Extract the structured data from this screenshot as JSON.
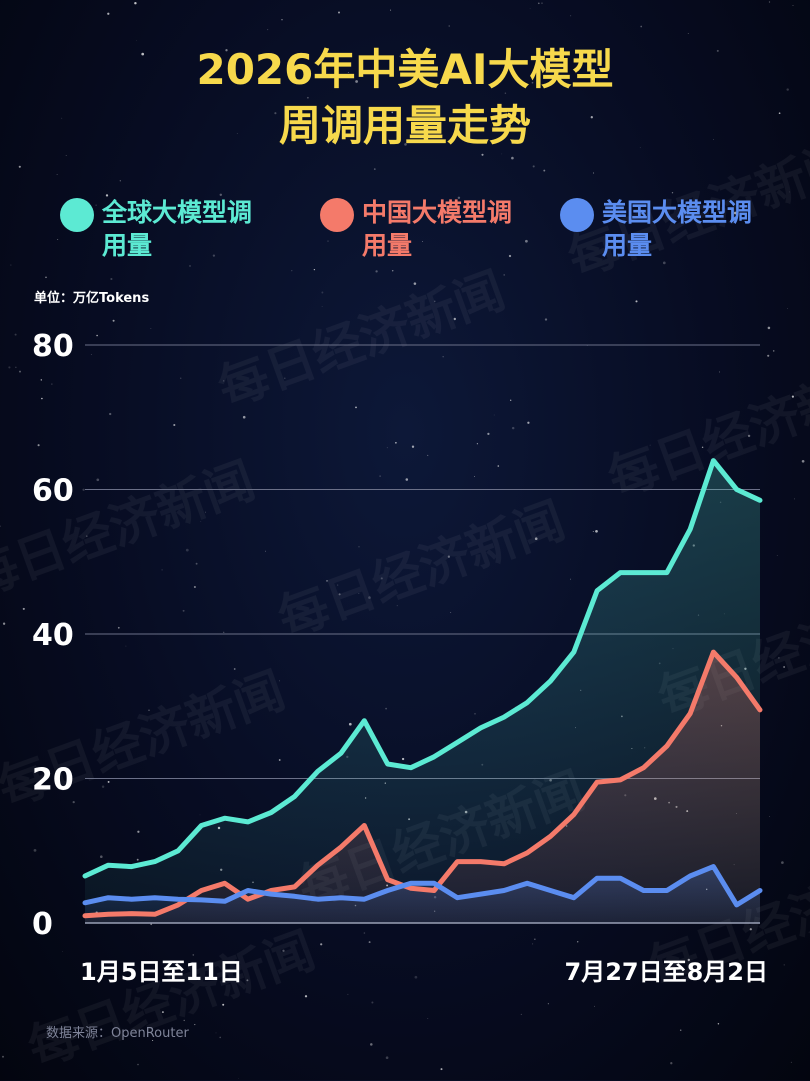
{
  "title_line1": "2026年中美AI大模型",
  "title_line2": "周调用量走势",
  "unit": "单位：万亿Tokens",
  "source": "数据来源：OpenRouter",
  "watermark": "每日经济新闻",
  "legend": [
    {
      "label": "全球大模型调用量",
      "color": "#5cead3"
    },
    {
      "label": "中国大模型调用量",
      "color": "#f47a6a"
    },
    {
      "label": "美国大模型调用量",
      "color": "#5b8df0"
    }
  ],
  "chart_data": {
    "type": "line",
    "x_first_label": "1月5日至11日",
    "x_last_label": "7月27日至8月2日",
    "ylim": [
      0,
      80
    ],
    "yticks": [
      0,
      20,
      40,
      60,
      80
    ],
    "grid": true,
    "series": [
      {
        "name": "全球大模型调用量",
        "color": "#5cead3",
        "values": [
          6.5,
          8.0,
          7.8,
          8.5,
          10.0,
          13.5,
          14.5,
          14.0,
          15.3,
          17.5,
          21.0,
          23.5,
          28.0,
          22.0,
          21.5,
          23.0,
          25.0,
          27.0,
          28.5,
          30.5,
          33.5,
          37.5,
          46.0,
          48.5,
          48.5,
          48.5,
          54.5,
          64.0,
          60.0,
          58.5
        ]
      },
      {
        "name": "中国大模型调用量",
        "color": "#f47a6a",
        "values": [
          1.0,
          1.2,
          1.3,
          1.2,
          2.5,
          4.5,
          5.5,
          3.3,
          4.5,
          5.0,
          8.0,
          10.5,
          13.5,
          6.0,
          4.8,
          4.5,
          8.5,
          8.5,
          8.2,
          9.7,
          12.0,
          15.0,
          19.5,
          19.8,
          21.5,
          24.5,
          29.0,
          37.5,
          34.0,
          29.5
        ]
      },
      {
        "name": "美国大模型调用量",
        "color": "#5b8df0",
        "values": [
          2.8,
          3.5,
          3.3,
          3.5,
          3.3,
          3.2,
          3.0,
          4.5,
          4.0,
          3.7,
          3.3,
          3.5,
          3.3,
          4.5,
          5.5,
          5.5,
          3.5,
          4.0,
          4.5,
          5.5,
          4.5,
          3.5,
          6.2,
          6.2,
          4.5,
          4.5,
          6.5,
          7.8,
          2.5,
          4.5
        ]
      }
    ]
  }
}
